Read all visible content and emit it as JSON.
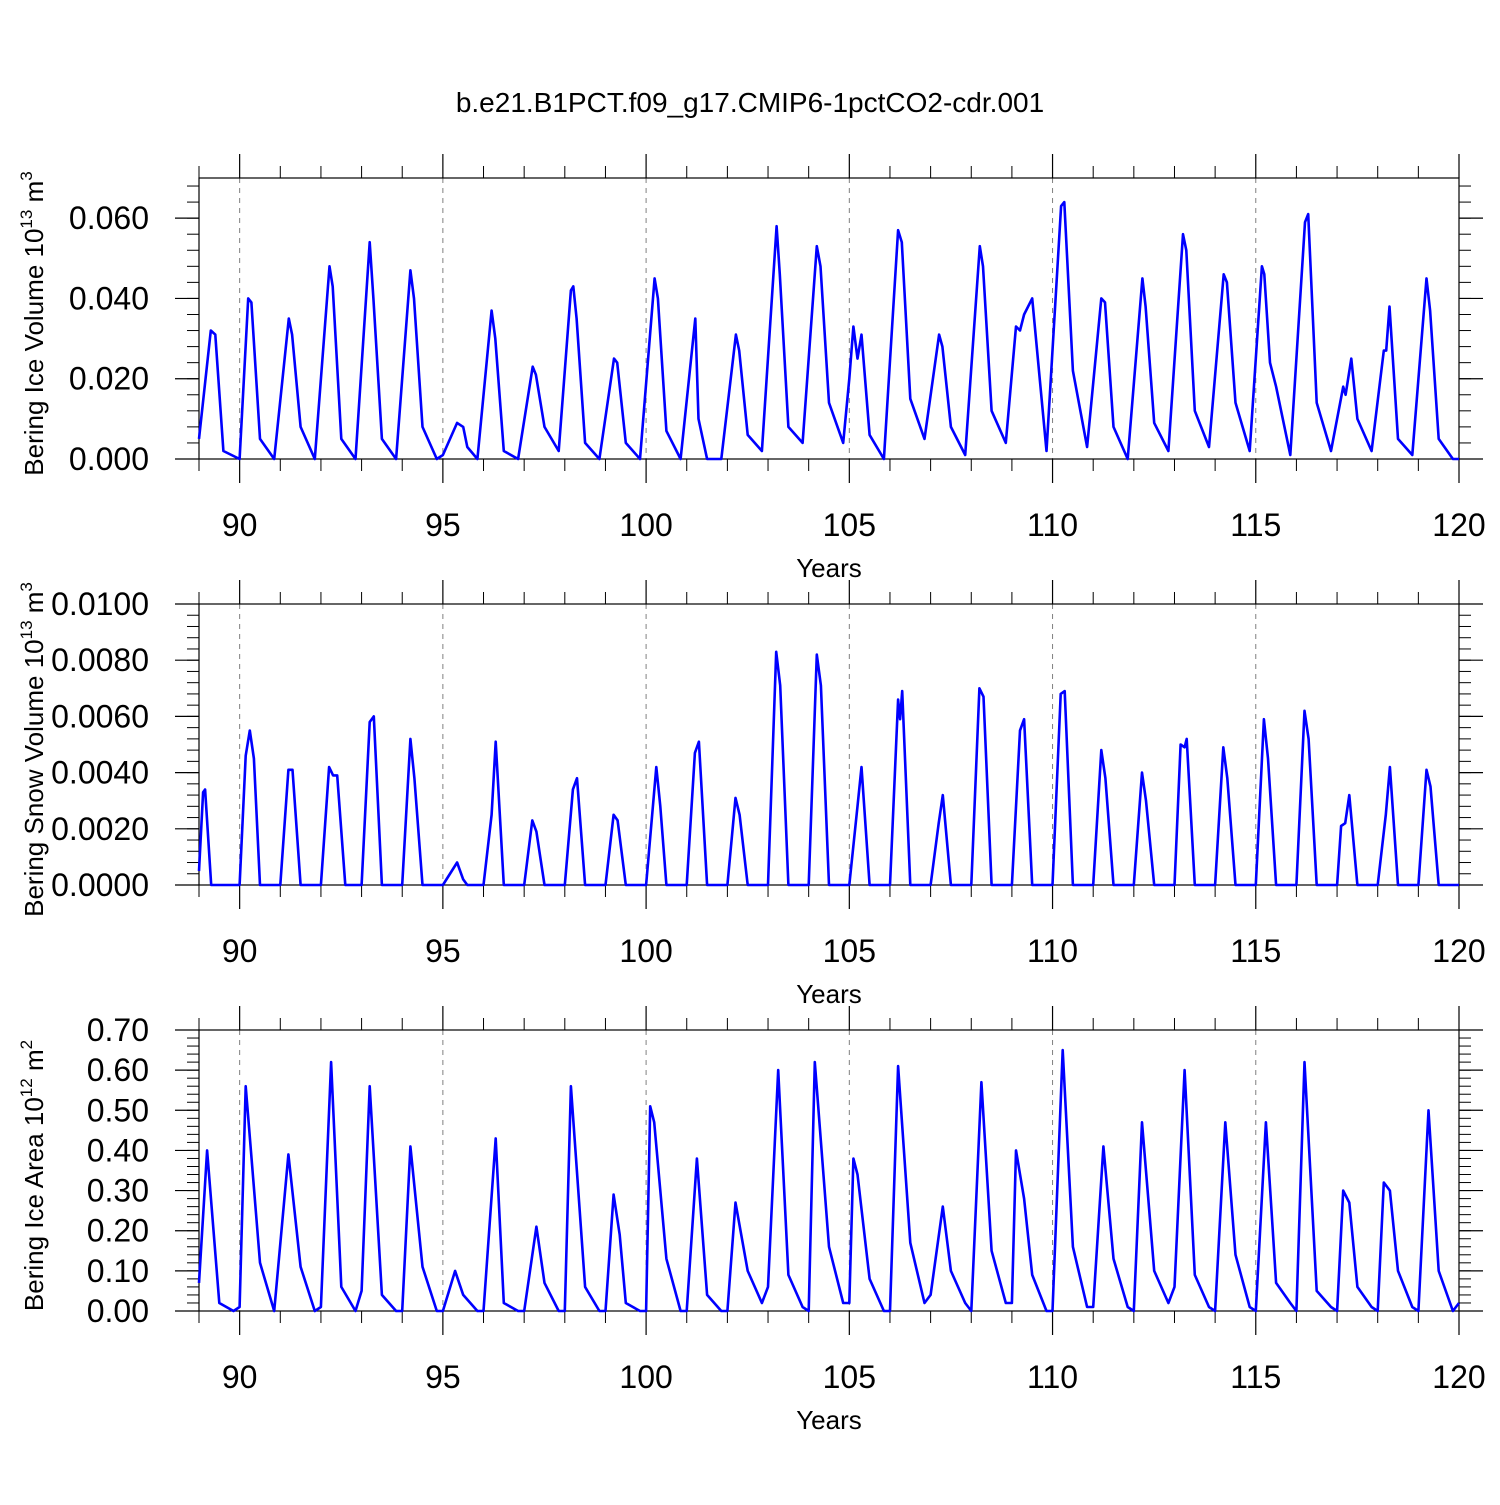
{
  "title": "b.e21.B1PCT.f09_g17.CMIP6-1pctCO2-cdr.001",
  "colors": {
    "series": "#0000ff",
    "axes": "#000000",
    "ref_line": "#808080"
  },
  "chart_data": [
    {
      "type": "line",
      "xlabel": "Years",
      "ylabel": "Bering Ice Volume",
      "ylabel_unit_base": "10",
      "ylabel_unit_exp": "13",
      "ylabel_unit_rest": "m",
      "ylabel_unit_rest_exp": "3",
      "xlim": [
        89,
        120
      ],
      "ylim": [
        0,
        0.07
      ],
      "xticks": [
        90,
        95,
        100,
        105,
        110,
        115,
        120
      ],
      "xtick_labels": [
        "90",
        "95",
        "100",
        "105",
        "110",
        "115",
        "120"
      ],
      "yticks": [
        0,
        0.02,
        0.04,
        0.06
      ],
      "ytick_labels": [
        "0.000",
        "0.020",
        "0.040",
        "0.060"
      ],
      "reference_lines_x": [
        90,
        95,
        100,
        105,
        110,
        115
      ],
      "x": [
        89.0,
        89.29,
        89.4,
        89.6,
        90.0,
        90.21,
        90.29,
        90.5,
        90.85,
        91.21,
        91.29,
        91.5,
        91.85,
        92.21,
        92.29,
        92.5,
        92.85,
        93.2,
        93.29,
        93.5,
        93.85,
        94.2,
        94.29,
        94.5,
        94.85,
        95.0,
        95.35,
        95.5,
        95.6,
        95.85,
        96.2,
        96.29,
        96.5,
        96.85,
        97.21,
        97.29,
        97.5,
        97.85,
        98.15,
        98.21,
        98.29,
        98.5,
        98.85,
        99.21,
        99.29,
        99.5,
        99.85,
        100.21,
        100.29,
        100.5,
        100.85,
        101.21,
        101.29,
        101.5,
        101.85,
        102.21,
        102.29,
        102.5,
        102.85,
        103.21,
        103.29,
        103.5,
        103.85,
        104.2,
        104.29,
        104.5,
        104.85,
        105.0,
        105.1,
        105.2,
        105.3,
        105.5,
        105.85,
        106.2,
        106.29,
        106.5,
        106.85,
        107.21,
        107.29,
        107.5,
        107.85,
        108.21,
        108.29,
        108.5,
        108.85,
        109.1,
        109.2,
        109.3,
        109.5,
        109.85,
        110.21,
        110.29,
        110.5,
        110.85,
        111.2,
        111.29,
        111.5,
        111.85,
        112.21,
        112.29,
        112.5,
        112.85,
        113.21,
        113.29,
        113.5,
        113.85,
        114.21,
        114.29,
        114.5,
        114.85,
        115.15,
        115.21,
        115.35,
        115.5,
        115.85,
        116.21,
        116.29,
        116.5,
        116.85,
        117.15,
        117.21,
        117.35,
        117.5,
        117.85,
        118.15,
        118.21,
        118.29,
        118.5,
        118.85,
        119.2,
        119.29,
        119.5,
        119.85,
        120.0
      ],
      "y": [
        0.005,
        0.032,
        0.031,
        0.002,
        0.0,
        0.04,
        0.039,
        0.005,
        0.0,
        0.035,
        0.031,
        0.008,
        0.0,
        0.048,
        0.043,
        0.005,
        0.0,
        0.054,
        0.04,
        0.005,
        0.0,
        0.047,
        0.04,
        0.008,
        0.0,
        0.001,
        0.009,
        0.008,
        0.003,
        0.0,
        0.037,
        0.03,
        0.002,
        0.0,
        0.023,
        0.021,
        0.008,
        0.002,
        0.042,
        0.043,
        0.035,
        0.004,
        0.0,
        0.025,
        0.024,
        0.004,
        0.0,
        0.045,
        0.04,
        0.007,
        0.0,
        0.035,
        0.01,
        0.0,
        0.0,
        0.031,
        0.027,
        0.006,
        0.002,
        0.058,
        0.046,
        0.008,
        0.004,
        0.053,
        0.048,
        0.014,
        0.004,
        0.02,
        0.033,
        0.025,
        0.031,
        0.006,
        0.0,
        0.057,
        0.054,
        0.015,
        0.005,
        0.031,
        0.028,
        0.008,
        0.001,
        0.053,
        0.048,
        0.012,
        0.004,
        0.033,
        0.032,
        0.036,
        0.04,
        0.002,
        0.063,
        0.064,
        0.022,
        0.003,
        0.04,
        0.039,
        0.008,
        0.0,
        0.045,
        0.038,
        0.009,
        0.002,
        0.056,
        0.052,
        0.012,
        0.003,
        0.046,
        0.044,
        0.014,
        0.002,
        0.048,
        0.046,
        0.024,
        0.018,
        0.001,
        0.059,
        0.061,
        0.014,
        0.002,
        0.018,
        0.016,
        0.025,
        0.01,
        0.002,
        0.027,
        0.027,
        0.038,
        0.005,
        0.001,
        0.045,
        0.037,
        0.005,
        0.0,
        0.0
      ]
    },
    {
      "type": "line",
      "xlabel": "Years",
      "ylabel": "Bering Snow Volume",
      "ylabel_unit_base": "10",
      "ylabel_unit_exp": "13",
      "ylabel_unit_rest": "m",
      "ylabel_unit_rest_exp": "3",
      "xlim": [
        89,
        120
      ],
      "ylim": [
        0,
        0.01
      ],
      "xticks": [
        90,
        95,
        100,
        105,
        110,
        115,
        120
      ],
      "xtick_labels": [
        "90",
        "95",
        "100",
        "105",
        "110",
        "115",
        "120"
      ],
      "yticks": [
        0,
        0.002,
        0.004,
        0.006,
        0.008,
        0.01
      ],
      "ytick_labels": [
        "0.0000",
        "0.0020",
        "0.0040",
        "0.0060",
        "0.0080",
        "0.0100"
      ],
      "reference_lines_x": [
        90,
        95,
        100,
        105,
        110,
        115
      ],
      "x": [
        89.0,
        89.1,
        89.15,
        89.3,
        89.5,
        90.0,
        90.15,
        90.25,
        90.35,
        90.5,
        91.0,
        91.2,
        91.3,
        91.5,
        92.0,
        92.2,
        92.3,
        92.4,
        92.6,
        93.0,
        93.2,
        93.3,
        93.5,
        94.0,
        94.2,
        94.3,
        94.5,
        95.0,
        95.35,
        95.5,
        95.6,
        96.0,
        96.2,
        96.3,
        96.5,
        97.0,
        97.2,
        97.3,
        97.5,
        98.0,
        98.2,
        98.3,
        98.5,
        99.0,
        99.2,
        99.3,
        99.5,
        100.0,
        100.25,
        100.35,
        100.5,
        101.0,
        101.2,
        101.3,
        101.5,
        102.0,
        102.2,
        102.3,
        102.5,
        103.0,
        103.2,
        103.3,
        103.5,
        104.0,
        104.2,
        104.3,
        104.5,
        105.0,
        105.2,
        105.3,
        105.5,
        106.0,
        106.2,
        106.25,
        106.3,
        106.5,
        107.0,
        107.2,
        107.3,
        107.5,
        108.0,
        108.2,
        108.3,
        108.5,
        109.0,
        109.2,
        109.3,
        109.5,
        110.0,
        110.2,
        110.3,
        110.5,
        111.0,
        111.2,
        111.3,
        111.5,
        112.0,
        112.2,
        112.3,
        112.5,
        113.0,
        113.15,
        113.25,
        113.3,
        113.5,
        114.0,
        114.2,
        114.3,
        114.5,
        115.0,
        115.2,
        115.3,
        115.5,
        116.0,
        116.2,
        116.3,
        116.5,
        117.0,
        117.1,
        117.2,
        117.3,
        117.5,
        118.0,
        118.2,
        118.3,
        118.5,
        119.0,
        119.2,
        119.3,
        119.5,
        120.0
      ],
      "y": [
        0.0005,
        0.0033,
        0.0034,
        0.0,
        0.0,
        0.0,
        0.0046,
        0.0055,
        0.0045,
        0.0,
        0.0,
        0.0041,
        0.0041,
        0.0,
        0.0,
        0.0042,
        0.0039,
        0.0039,
        0.0,
        0.0,
        0.0058,
        0.006,
        0.0,
        0.0,
        0.0052,
        0.0038,
        0.0,
        0.0,
        0.0008,
        0.0002,
        0.0,
        0.0,
        0.0025,
        0.0051,
        0.0,
        0.0,
        0.0023,
        0.0019,
        0.0,
        0.0,
        0.0034,
        0.0038,
        0.0,
        0.0,
        0.0025,
        0.0023,
        0.0,
        0.0,
        0.0042,
        0.0028,
        0.0,
        0.0,
        0.0047,
        0.0051,
        0.0,
        0.0,
        0.0031,
        0.0025,
        0.0,
        0.0,
        0.0083,
        0.0071,
        0.0,
        0.0,
        0.0082,
        0.0071,
        0.0,
        0.0,
        0.0028,
        0.0042,
        0.0,
        0.0,
        0.0066,
        0.0059,
        0.0069,
        0.0,
        0.0,
        0.0022,
        0.0032,
        0.0,
        0.0,
        0.007,
        0.0067,
        0.0,
        0.0,
        0.0055,
        0.0059,
        0.0,
        0.0,
        0.0068,
        0.0069,
        0.0,
        0.0,
        0.0048,
        0.0038,
        0.0,
        0.0,
        0.004,
        0.003,
        0.0,
        0.0,
        0.005,
        0.0049,
        0.0052,
        0.0,
        0.0,
        0.0049,
        0.0038,
        0.0,
        0.0,
        0.0059,
        0.0045,
        0.0,
        0.0,
        0.0062,
        0.0052,
        0.0,
        0.0,
        0.0021,
        0.0022,
        0.0032,
        0.0,
        0.0,
        0.0025,
        0.0042,
        0.0,
        0.0,
        0.0041,
        0.0035,
        0.0,
        0.0
      ]
    },
    {
      "type": "line",
      "xlabel": "Years",
      "ylabel": "Bering Ice Area",
      "ylabel_unit_base": "10",
      "ylabel_unit_exp": "12",
      "ylabel_unit_rest": "m",
      "ylabel_unit_rest_exp": "2",
      "xlim": [
        89,
        120
      ],
      "ylim": [
        0,
        0.7
      ],
      "xticks": [
        90,
        95,
        100,
        105,
        110,
        115,
        120
      ],
      "xtick_labels": [
        "90",
        "95",
        "100",
        "105",
        "110",
        "115",
        "120"
      ],
      "yticks": [
        0,
        0.1,
        0.2,
        0.3,
        0.4,
        0.5,
        0.6,
        0.7
      ],
      "ytick_labels": [
        "0.00",
        "0.10",
        "0.20",
        "0.30",
        "0.40",
        "0.50",
        "0.60",
        "0.70"
      ],
      "reference_lines_x": [
        90,
        95,
        100,
        105,
        110,
        115
      ],
      "x": [
        89.0,
        89.2,
        89.5,
        89.85,
        90.0,
        90.15,
        90.5,
        90.85,
        91.2,
        91.5,
        91.85,
        92.0,
        92.25,
        92.5,
        92.85,
        93.0,
        93.2,
        93.5,
        93.85,
        94.0,
        94.2,
        94.5,
        94.85,
        95.0,
        95.3,
        95.5,
        95.85,
        96.0,
        96.3,
        96.5,
        96.85,
        97.0,
        97.3,
        97.5,
        97.85,
        98.0,
        98.15,
        98.5,
        98.85,
        99.0,
        99.2,
        99.35,
        99.5,
        99.85,
        100.0,
        100.1,
        100.2,
        100.5,
        100.85,
        101.0,
        101.25,
        101.5,
        101.85,
        102.0,
        102.2,
        102.5,
        102.85,
        103.0,
        103.25,
        103.5,
        103.85,
        104.0,
        104.15,
        104.5,
        104.85,
        105.0,
        105.1,
        105.2,
        105.5,
        105.85,
        106.0,
        106.2,
        106.5,
        106.85,
        107.0,
        107.3,
        107.5,
        107.85,
        108.0,
        108.25,
        108.5,
        108.85,
        109.0,
        109.1,
        109.3,
        109.5,
        109.85,
        110.0,
        110.25,
        110.5,
        110.85,
        111.0,
        111.25,
        111.5,
        111.85,
        112.0,
        112.2,
        112.5,
        112.85,
        113.0,
        113.25,
        113.5,
        113.85,
        114.0,
        114.25,
        114.5,
        114.85,
        115.0,
        115.25,
        115.5,
        115.85,
        116.0,
        116.2,
        116.5,
        116.85,
        117.0,
        117.15,
        117.3,
        117.5,
        117.85,
        118.0,
        118.15,
        118.3,
        118.5,
        118.85,
        119.0,
        119.25,
        119.5,
        119.85,
        120.0
      ],
      "y": [
        0.07,
        0.4,
        0.02,
        0.0,
        0.01,
        0.56,
        0.12,
        0.0,
        0.39,
        0.11,
        0.0,
        0.01,
        0.62,
        0.06,
        0.0,
        0.05,
        0.56,
        0.04,
        0.0,
        0.0,
        0.41,
        0.11,
        0.0,
        0.0,
        0.1,
        0.04,
        0.0,
        0.0,
        0.43,
        0.02,
        0.0,
        0.0,
        0.21,
        0.07,
        0.0,
        0.0,
        0.56,
        0.06,
        0.0,
        0.0,
        0.29,
        0.19,
        0.02,
        0.0,
        0.0,
        0.51,
        0.47,
        0.13,
        0.0,
        0.0,
        0.38,
        0.04,
        0.0,
        0.0,
        0.27,
        0.1,
        0.02,
        0.06,
        0.6,
        0.09,
        0.01,
        0.0,
        0.62,
        0.16,
        0.02,
        0.02,
        0.38,
        0.34,
        0.08,
        0.0,
        0.0,
        0.61,
        0.17,
        0.02,
        0.04,
        0.26,
        0.1,
        0.02,
        0.0,
        0.57,
        0.15,
        0.02,
        0.02,
        0.4,
        0.28,
        0.09,
        0.0,
        0.0,
        0.65,
        0.16,
        0.01,
        0.01,
        0.41,
        0.13,
        0.01,
        0.0,
        0.47,
        0.1,
        0.02,
        0.06,
        0.6,
        0.09,
        0.01,
        0.0,
        0.47,
        0.14,
        0.01,
        0.0,
        0.47,
        0.07,
        0.02,
        0.0,
        0.62,
        0.05,
        0.01,
        0.0,
        0.3,
        0.27,
        0.06,
        0.01,
        0.0,
        0.32,
        0.3,
        0.1,
        0.01,
        0.0,
        0.5,
        0.1,
        0.0,
        0.02
      ]
    }
  ]
}
